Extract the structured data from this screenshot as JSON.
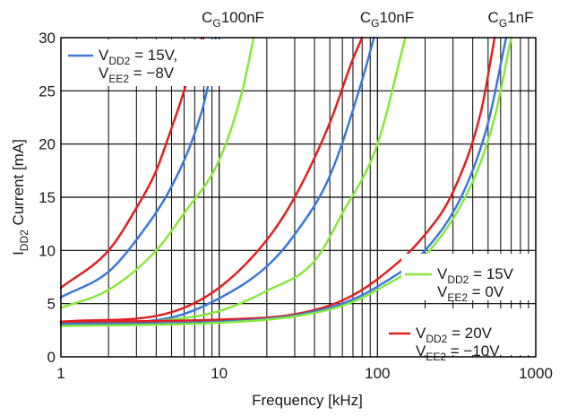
{
  "chart_data": {
    "type": "line",
    "xlabel": "Frequency [kHz]",
    "ylabel": {
      "main": "I",
      "sub": "DD2",
      "rest": " Current [mA]"
    },
    "x_scale": "log",
    "xlim": [
      1,
      1000
    ],
    "ylim": [
      0,
      30
    ],
    "x_ticks": [
      "1",
      "10",
      "100",
      "1000"
    ],
    "y_ticks": [
      "0",
      "5",
      "10",
      "15",
      "20",
      "25",
      "30"
    ],
    "grid": true,
    "colors": {
      "blue": "#3a78d8",
      "green": "#88e83a",
      "red": "#e02020"
    },
    "capacitance_labels": [
      {
        "c": "C",
        "sub": "G",
        "rest": "100nF"
      },
      {
        "c": "C",
        "sub": "G",
        "rest": "10nF"
      },
      {
        "c": "C",
        "sub": "G",
        "rest": "1nF"
      }
    ],
    "legend": [
      {
        "color": "blue",
        "line1": {
          "v": "V",
          "sub": "DD2",
          "rest": " = 15V,"
        },
        "line2": {
          "v": "V",
          "sub": "EE2",
          "rest": " = −8V"
        }
      },
      {
        "color": "green",
        "line1": {
          "v": "V",
          "sub": "DD2",
          "rest": " = 15V"
        },
        "line2": {
          "v": "V",
          "sub": "EE2",
          "rest": " = 0V"
        }
      },
      {
        "color": "red",
        "line1": {
          "v": "V",
          "sub": "DD2",
          "rest": " = 20V"
        },
        "line2": {
          "v": "V",
          "sub": "EE2",
          "rest": " = −10V"
        }
      }
    ],
    "series": [
      {
        "color": "red",
        "group": "100nF",
        "x": [
          1,
          2,
          3,
          4,
          5,
          6,
          7,
          7.8
        ],
        "y": [
          6.5,
          10,
          14,
          17.5,
          21.5,
          25,
          28.5,
          30
        ]
      },
      {
        "color": "blue",
        "group": "100nF",
        "x": [
          1,
          2,
          3,
          5,
          7,
          8.5,
          9.5
        ],
        "y": [
          5.6,
          8,
          11,
          16,
          21,
          25.5,
          30
        ]
      },
      {
        "color": "green",
        "group": "100nF",
        "x": [
          1,
          2,
          4,
          6,
          10,
          14,
          16.5
        ],
        "y": [
          4.6,
          6.3,
          10,
          13.5,
          18.5,
          25,
          30
        ]
      },
      {
        "color": "red",
        "group": "10nF",
        "x": [
          1,
          5,
          10,
          20,
          30,
          50,
          70,
          80
        ],
        "y": [
          3.3,
          4.2,
          6.5,
          11,
          15,
          22,
          28,
          30
        ]
      },
      {
        "color": "blue",
        "group": "10nF",
        "x": [
          1,
          5,
          10,
          20,
          30,
          50,
          80,
          95
        ],
        "y": [
          3.2,
          3.7,
          5.5,
          8.5,
          11.5,
          17,
          26,
          30
        ]
      },
      {
        "color": "green",
        "group": "10nF",
        "x": [
          1,
          5,
          10,
          20,
          40,
          60,
          100,
          150
        ],
        "y": [
          3.0,
          3.5,
          4.3,
          6.2,
          9,
          13.5,
          20,
          30
        ]
      },
      {
        "color": "red",
        "group": "1nF",
        "x": [
          1,
          10,
          30,
          60,
          100,
          200,
          300,
          450,
          550
        ],
        "y": [
          3.3,
          3.5,
          4.0,
          5.3,
          7.3,
          11.5,
          15.5,
          23,
          30
        ]
      },
      {
        "color": "blue",
        "group": "1nF",
        "x": [
          1,
          10,
          30,
          60,
          100,
          200,
          350,
          500,
          650
        ],
        "y": [
          3.1,
          3.3,
          3.9,
          5.0,
          6.6,
          10,
          15.5,
          22,
          30
        ]
      },
      {
        "color": "green",
        "group": "1nF",
        "x": [
          1,
          10,
          30,
          60,
          100,
          200,
          400,
          550,
          700
        ],
        "y": [
          2.9,
          3.2,
          3.8,
          4.8,
          6.3,
          9.5,
          16.5,
          22.5,
          30
        ]
      }
    ]
  }
}
